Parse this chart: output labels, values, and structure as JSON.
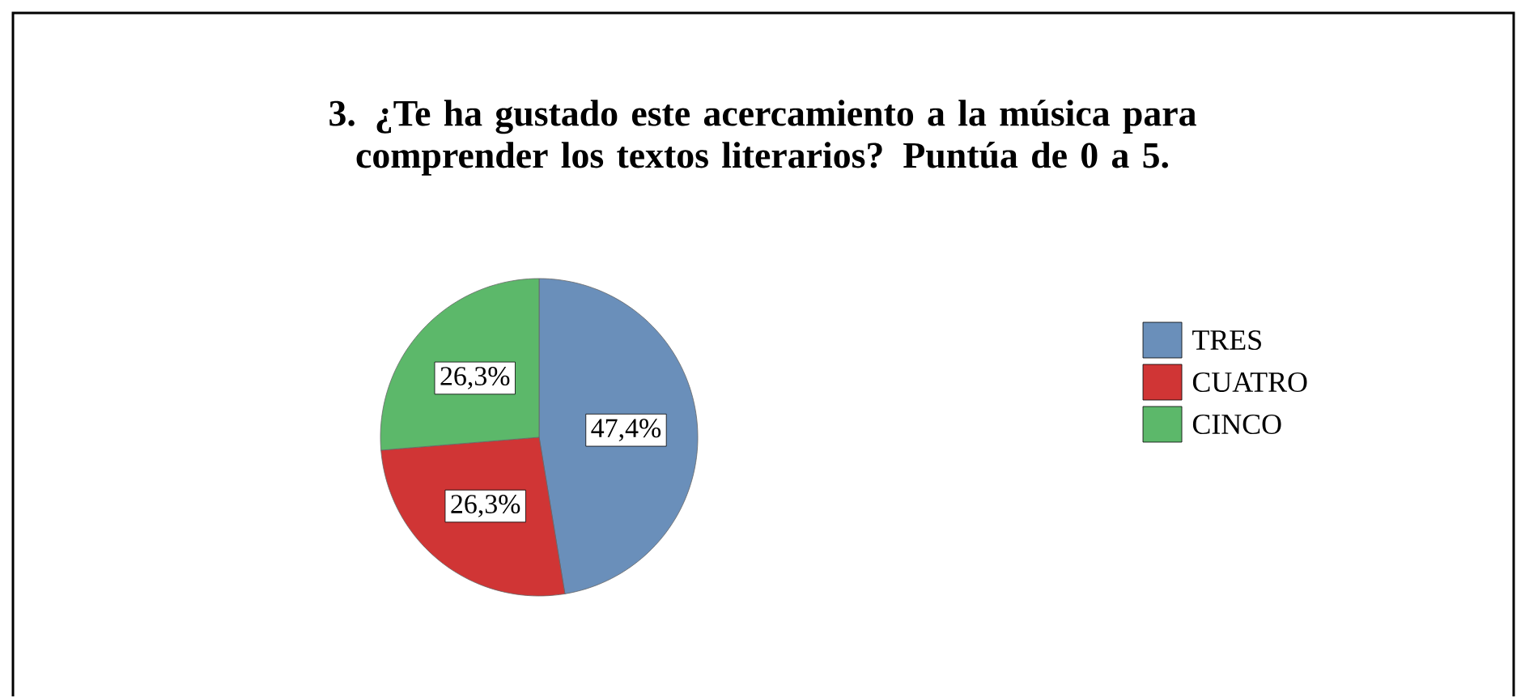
{
  "chart_data": {
    "type": "pie",
    "title": "3. ¿Te ha gustado este acercamiento a la música para comprender los textos literarios? Puntúa de 0 a 5.",
    "categories": [
      "TRES",
      "CUATRO",
      "CINCO"
    ],
    "values": [
      47.4,
      26.3,
      26.3
    ],
    "colors": [
      "#6a8fba",
      "#d03535",
      "#5cb86a"
    ],
    "value_labels": [
      "47,4%",
      "26,3%",
      "26,3%"
    ],
    "legend": "right"
  }
}
